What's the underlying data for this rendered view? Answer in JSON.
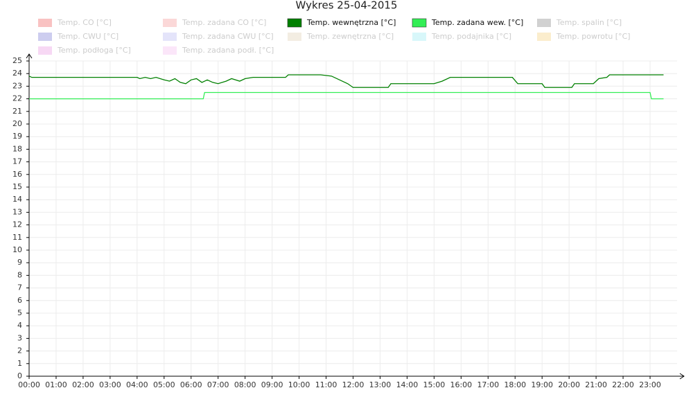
{
  "chart_data": {
    "type": "line",
    "title": "Wykres 25-04-2015",
    "xlim": [
      0,
      24
    ],
    "ylim": [
      0,
      25
    ],
    "xticks": [
      {
        "value": 0,
        "label": "00:00"
      },
      {
        "value": 1,
        "label": "01:00"
      },
      {
        "value": 2,
        "label": "02:00"
      },
      {
        "value": 3,
        "label": "03:00"
      },
      {
        "value": 4,
        "label": "04:00"
      },
      {
        "value": 5,
        "label": "05:00"
      },
      {
        "value": 6,
        "label": "06:00"
      },
      {
        "value": 7,
        "label": "07:00"
      },
      {
        "value": 8,
        "label": "08:00"
      },
      {
        "value": 9,
        "label": "09:00"
      },
      {
        "value": 10,
        "label": "10:00"
      },
      {
        "value": 11,
        "label": "11:00"
      },
      {
        "value": 12,
        "label": "12:00"
      },
      {
        "value": 13,
        "label": "13:00"
      },
      {
        "value": 14,
        "label": "14:00"
      },
      {
        "value": 15,
        "label": "15:00"
      },
      {
        "value": 16,
        "label": "16:00"
      },
      {
        "value": 17,
        "label": "17:00"
      },
      {
        "value": 18,
        "label": "18:00"
      },
      {
        "value": 19,
        "label": "19:00"
      },
      {
        "value": 20,
        "label": "20:00"
      },
      {
        "value": 21,
        "label": "21:00"
      },
      {
        "value": 22,
        "label": "22:00"
      },
      {
        "value": 23,
        "label": "23:00"
      }
    ],
    "yticks": [
      0,
      1,
      2,
      3,
      4,
      5,
      6,
      7,
      8,
      9,
      10,
      11,
      12,
      13,
      14,
      15,
      16,
      17,
      18,
      19,
      20,
      21,
      22,
      23,
      24,
      25
    ],
    "grid": true,
    "series": [
      {
        "name": "Temp. CO [°C]",
        "color": "#f7a8a8",
        "visible": false
      },
      {
        "name": "Temp. zadana CO [°C]",
        "color": "#f9c8c8",
        "visible": false
      },
      {
        "name": "Temp. wewnętrzna [°C]",
        "color": "#008000",
        "visible": true,
        "x": [
          0,
          0.1,
          4.0,
          4.1,
          4.3,
          4.5,
          4.7,
          5.0,
          5.2,
          5.4,
          5.6,
          5.8,
          6.0,
          6.2,
          6.4,
          6.6,
          6.8,
          7.0,
          7.3,
          7.5,
          7.8,
          8.0,
          8.3,
          9.5,
          9.6,
          10.8,
          11.2,
          11.5,
          11.8,
          12.0,
          13.3,
          13.4,
          15.0,
          15.3,
          15.6,
          16.0,
          17.9,
          18.1,
          19.0,
          19.1,
          20.1,
          20.2,
          20.9,
          21.1,
          21.4,
          21.5,
          23.5
        ],
        "values": [
          23.8,
          23.7,
          23.7,
          23.6,
          23.7,
          23.6,
          23.7,
          23.5,
          23.4,
          23.6,
          23.3,
          23.2,
          23.5,
          23.6,
          23.3,
          23.5,
          23.3,
          23.2,
          23.4,
          23.6,
          23.4,
          23.6,
          23.7,
          23.7,
          23.9,
          23.9,
          23.8,
          23.5,
          23.2,
          22.9,
          22.9,
          23.2,
          23.2,
          23.4,
          23.7,
          23.7,
          23.7,
          23.2,
          23.2,
          22.9,
          22.9,
          23.2,
          23.2,
          23.6,
          23.7,
          23.9,
          23.9
        ]
      },
      {
        "name": "Temp. zadana wew. [°C]",
        "color": "#33ee55",
        "visible": true,
        "x": [
          0,
          6.45,
          6.5,
          23.0,
          23.05,
          23.5
        ],
        "values": [
          22,
          22,
          22.5,
          22.5,
          22,
          22
        ]
      },
      {
        "name": "Temp. spalin [°C]",
        "color": "#bdbdbd",
        "visible": false
      },
      {
        "name": "Temp. CWU [°C]",
        "color": "#b8b8e8",
        "visible": false
      },
      {
        "name": "Temp. zadana CWU [°C]",
        "color": "#d8d8f8",
        "visible": false
      },
      {
        "name": "Temp. zewnętrzna [°C]",
        "color": "#eee6d6",
        "visible": false
      },
      {
        "name": "Temp. podajnika [°C]",
        "color": "#c8f4f8",
        "visible": false
      },
      {
        "name": "Temp. powrotu [°C]",
        "color": "#fae6b8",
        "visible": false
      },
      {
        "name": "Temp. podłoga [°C]",
        "color": "#f4c8f0",
        "visible": false
      },
      {
        "name": "Temp. zadana podł. [°C]",
        "color": "#f9dcf6",
        "visible": false
      }
    ]
  }
}
